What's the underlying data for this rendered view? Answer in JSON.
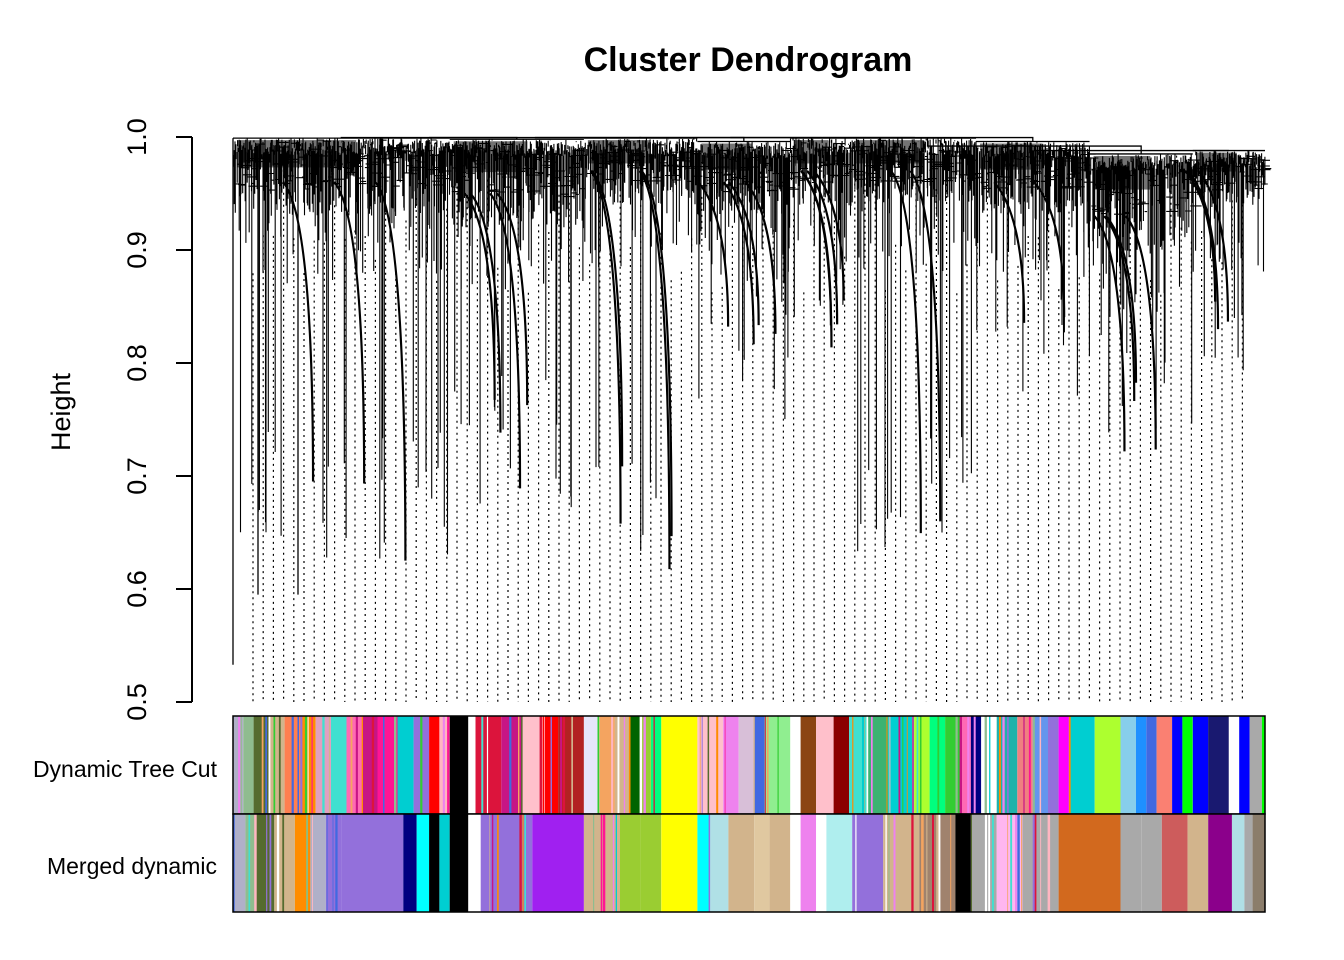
{
  "chart_data": {
    "type": "dendrogram",
    "title": "Cluster Dendrogram",
    "ylabel": "Height",
    "xlabel": "",
    "ylim": [
      0.5,
      1.0
    ],
    "yticks": [
      "0.5",
      "0.6",
      "0.7",
      "0.8",
      "0.9",
      "1.0"
    ],
    "ytick_values": [
      0.5,
      0.6,
      0.7,
      0.8,
      0.9,
      1.0
    ],
    "clusters": [
      {
        "start": 0.0,
        "end": 0.21,
        "top": 0.999,
        "min": 0.62,
        "dense": 0.93
      },
      {
        "start": 0.21,
        "end": 0.34,
        "top": 0.998,
        "min": 0.67,
        "dense": 0.92
      },
      {
        "start": 0.34,
        "end": 0.45,
        "top": 0.999,
        "min": 0.615,
        "dense": 0.94
      },
      {
        "start": 0.45,
        "end": 0.54,
        "top": 0.996,
        "min": 0.75,
        "dense": 0.93
      },
      {
        "start": 0.54,
        "end": 0.6,
        "top": 0.999,
        "min": 0.81,
        "dense": 0.94
      },
      {
        "start": 0.6,
        "end": 0.72,
        "top": 0.999,
        "min": 0.625,
        "dense": 0.94
      },
      {
        "start": 0.72,
        "end": 0.83,
        "top": 0.996,
        "min": 0.76,
        "dense": 0.93
      },
      {
        "start": 0.83,
        "end": 0.93,
        "top": 0.985,
        "min": 0.71,
        "dense": 0.9
      },
      {
        "start": 0.93,
        "end": 1.0,
        "top": 0.988,
        "min": 0.79,
        "dense": 0.94
      }
    ],
    "color_rows": [
      {
        "label": "Dynamic Tree Cut",
        "segments": [
          {
            "s": 0.0,
            "e": 0.01,
            "c": "#b0b0c8"
          },
          {
            "s": 0.01,
            "e": 0.02,
            "c": "#8fbc8f"
          },
          {
            "s": 0.02,
            "e": 0.035,
            "c": "#556b2f"
          },
          {
            "s": 0.035,
            "e": 0.05,
            "c": "#d2b48c"
          },
          {
            "s": 0.05,
            "e": 0.065,
            "c": "#ff7f50"
          },
          {
            "s": 0.065,
            "e": 0.08,
            "c": "#ff8c00"
          },
          {
            "s": 0.08,
            "e": 0.095,
            "c": "#e0a0c0"
          },
          {
            "s": 0.095,
            "e": 0.11,
            "c": "#40e0d0"
          },
          {
            "s": 0.11,
            "e": 0.125,
            "c": "#ff69b4"
          },
          {
            "s": 0.125,
            "e": 0.14,
            "c": "#c71585"
          },
          {
            "s": 0.14,
            "e": 0.16,
            "c": "#ff1493"
          },
          {
            "s": 0.16,
            "e": 0.175,
            "c": "#00ced1"
          },
          {
            "s": 0.175,
            "e": 0.19,
            "c": "#9370db"
          },
          {
            "s": 0.19,
            "e": 0.2,
            "c": "#ff0000"
          },
          {
            "s": 0.2,
            "e": 0.21,
            "c": "#ffb6c1"
          },
          {
            "s": 0.21,
            "e": 0.228,
            "c": "#000000"
          },
          {
            "s": 0.228,
            "e": 0.235,
            "c": "#ffffff"
          },
          {
            "s": 0.235,
            "e": 0.26,
            "c": "#dc143c"
          },
          {
            "s": 0.26,
            "e": 0.28,
            "c": "#c71585"
          },
          {
            "s": 0.28,
            "e": 0.3,
            "c": "#ffc0cb"
          },
          {
            "s": 0.3,
            "e": 0.315,
            "c": "#ff0000"
          },
          {
            "s": 0.315,
            "e": 0.34,
            "c": "#b22222"
          },
          {
            "s": 0.34,
            "e": 0.355,
            "c": "#e6e6fa"
          },
          {
            "s": 0.355,
            "e": 0.37,
            "c": "#f4a460"
          },
          {
            "s": 0.37,
            "e": 0.385,
            "c": "#d2b48c"
          },
          {
            "s": 0.385,
            "e": 0.395,
            "c": "#006400"
          },
          {
            "s": 0.395,
            "e": 0.405,
            "c": "#9acd32"
          },
          {
            "s": 0.405,
            "e": 0.415,
            "c": "#00ff7f"
          },
          {
            "s": 0.415,
            "e": 0.45,
            "c": "#ffff00"
          },
          {
            "s": 0.45,
            "e": 0.475,
            "c": "#ffc0cb"
          },
          {
            "s": 0.475,
            "e": 0.49,
            "c": "#ee82ee"
          },
          {
            "s": 0.49,
            "e": 0.505,
            "c": "#d8bfd8"
          },
          {
            "s": 0.505,
            "e": 0.515,
            "c": "#4169e1"
          },
          {
            "s": 0.515,
            "e": 0.54,
            "c": "#90ee90"
          },
          {
            "s": 0.54,
            "e": 0.55,
            "c": "#ffffff"
          },
          {
            "s": 0.55,
            "e": 0.565,
            "c": "#8b4513"
          },
          {
            "s": 0.565,
            "e": 0.582,
            "c": "#ffc0cb"
          },
          {
            "s": 0.582,
            "e": 0.597,
            "c": "#8b0000"
          },
          {
            "s": 0.597,
            "e": 0.615,
            "c": "#40e0d0"
          },
          {
            "s": 0.615,
            "e": 0.635,
            "c": "#3cb371"
          },
          {
            "s": 0.635,
            "e": 0.66,
            "c": "#00ced1"
          },
          {
            "s": 0.66,
            "e": 0.675,
            "c": "#adff2f"
          },
          {
            "s": 0.675,
            "e": 0.69,
            "c": "#00ff7f"
          },
          {
            "s": 0.69,
            "e": 0.705,
            "c": "#32cd32"
          },
          {
            "s": 0.705,
            "e": 0.715,
            "c": "#ff69b4"
          },
          {
            "s": 0.715,
            "e": 0.725,
            "c": "#000080"
          },
          {
            "s": 0.725,
            "e": 0.74,
            "c": "#ffffff"
          },
          {
            "s": 0.74,
            "e": 0.76,
            "c": "#20b2aa"
          },
          {
            "s": 0.76,
            "e": 0.775,
            "c": "#f08080"
          },
          {
            "s": 0.775,
            "e": 0.79,
            "c": "#6495ed"
          },
          {
            "s": 0.79,
            "e": 0.8,
            "c": "#9370db"
          },
          {
            "s": 0.8,
            "e": 0.81,
            "c": "#ff00ff"
          },
          {
            "s": 0.81,
            "e": 0.835,
            "c": "#00ced1"
          },
          {
            "s": 0.835,
            "e": 0.86,
            "c": "#adff2f"
          },
          {
            "s": 0.86,
            "e": 0.875,
            "c": "#87ceeb"
          },
          {
            "s": 0.875,
            "e": 0.885,
            "c": "#1e90ff"
          },
          {
            "s": 0.885,
            "e": 0.895,
            "c": "#4169e1"
          },
          {
            "s": 0.895,
            "e": 0.91,
            "c": "#fa8072"
          },
          {
            "s": 0.91,
            "e": 0.92,
            "c": "#0000ff"
          },
          {
            "s": 0.92,
            "e": 0.93,
            "c": "#00ff00"
          },
          {
            "s": 0.93,
            "e": 0.945,
            "c": "#0000ff"
          },
          {
            "s": 0.945,
            "e": 0.965,
            "c": "#191970"
          },
          {
            "s": 0.965,
            "e": 0.975,
            "c": "#ffffff"
          },
          {
            "s": 0.975,
            "e": 0.985,
            "c": "#0000ff"
          },
          {
            "s": 0.985,
            "e": 0.997,
            "c": "#a9a9a9"
          },
          {
            "s": 0.997,
            "e": 1.0,
            "c": "#00ff00"
          }
        ]
      },
      {
        "label": "Merged dynamic",
        "segments": [
          {
            "s": 0.0,
            "e": 0.012,
            "c": "#b0b0c8"
          },
          {
            "s": 0.012,
            "e": 0.022,
            "c": "#8fbc8f"
          },
          {
            "s": 0.022,
            "e": 0.04,
            "c": "#556b2f"
          },
          {
            "s": 0.04,
            "e": 0.06,
            "c": "#d2b48c"
          },
          {
            "s": 0.06,
            "e": 0.075,
            "c": "#ff8c00"
          },
          {
            "s": 0.075,
            "e": 0.09,
            "c": "#b0b0c8"
          },
          {
            "s": 0.09,
            "e": 0.105,
            "c": "#9370db"
          },
          {
            "s": 0.105,
            "e": 0.165,
            "c": "#9370db"
          },
          {
            "s": 0.165,
            "e": 0.178,
            "c": "#000080"
          },
          {
            "s": 0.178,
            "e": 0.19,
            "c": "#00ffff"
          },
          {
            "s": 0.19,
            "e": 0.2,
            "c": "#000000"
          },
          {
            "s": 0.2,
            "e": 0.21,
            "c": "#00ced1"
          },
          {
            "s": 0.21,
            "e": 0.228,
            "c": "#000000"
          },
          {
            "s": 0.228,
            "e": 0.24,
            "c": "#ffffff"
          },
          {
            "s": 0.24,
            "e": 0.29,
            "c": "#9370db"
          },
          {
            "s": 0.29,
            "e": 0.34,
            "c": "#a020f0"
          },
          {
            "s": 0.34,
            "e": 0.375,
            "c": "#d2b48c"
          },
          {
            "s": 0.375,
            "e": 0.395,
            "c": "#9acd32"
          },
          {
            "s": 0.395,
            "e": 0.415,
            "c": "#9acd32"
          },
          {
            "s": 0.415,
            "e": 0.45,
            "c": "#ffff00"
          },
          {
            "s": 0.45,
            "e": 0.462,
            "c": "#00ffff"
          },
          {
            "s": 0.462,
            "e": 0.48,
            "c": "#b0e0e6"
          },
          {
            "s": 0.48,
            "e": 0.505,
            "c": "#d2b48c"
          },
          {
            "s": 0.505,
            "e": 0.52,
            "c": "#e0c8a0"
          },
          {
            "s": 0.52,
            "e": 0.54,
            "c": "#d2b48c"
          },
          {
            "s": 0.54,
            "e": 0.55,
            "c": "#ffffff"
          },
          {
            "s": 0.55,
            "e": 0.565,
            "c": "#ee82ee"
          },
          {
            "s": 0.565,
            "e": 0.575,
            "c": "#ffffff"
          },
          {
            "s": 0.575,
            "e": 0.6,
            "c": "#afeeee"
          },
          {
            "s": 0.6,
            "e": 0.63,
            "c": "#9370db"
          },
          {
            "s": 0.63,
            "e": 0.665,
            "c": "#d2b48c"
          },
          {
            "s": 0.665,
            "e": 0.7,
            "c": "#a0826d"
          },
          {
            "s": 0.7,
            "e": 0.715,
            "c": "#000000"
          },
          {
            "s": 0.715,
            "e": 0.74,
            "c": "#a9a9a9"
          },
          {
            "s": 0.74,
            "e": 0.765,
            "c": "#ffb6f0"
          },
          {
            "s": 0.765,
            "e": 0.8,
            "c": "#a9a9a9"
          },
          {
            "s": 0.8,
            "e": 0.86,
            "c": "#d2691e"
          },
          {
            "s": 0.86,
            "e": 0.88,
            "c": "#a9a9a9"
          },
          {
            "s": 0.88,
            "e": 0.9,
            "c": "#a9a9a9"
          },
          {
            "s": 0.9,
            "e": 0.925,
            "c": "#cd5c5c"
          },
          {
            "s": 0.925,
            "e": 0.945,
            "c": "#d2b48c"
          },
          {
            "s": 0.945,
            "e": 0.968,
            "c": "#8b008b"
          },
          {
            "s": 0.968,
            "e": 0.98,
            "c": "#b0e0e6"
          },
          {
            "s": 0.98,
            "e": 0.988,
            "c": "#a9a9a9"
          },
          {
            "s": 0.988,
            "e": 1.0,
            "c": "#8b7d6b"
          }
        ]
      }
    ]
  }
}
